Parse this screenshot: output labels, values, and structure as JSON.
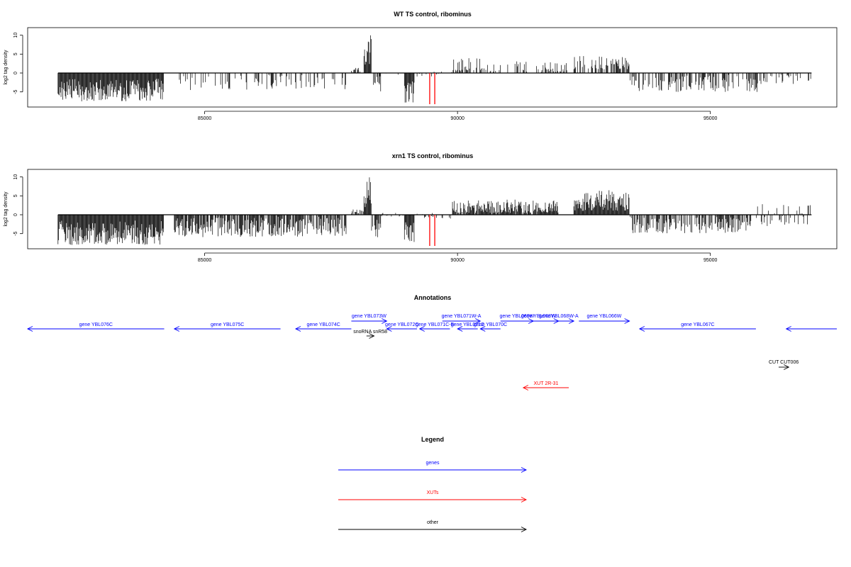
{
  "chart_data": [
    {
      "type": "bar",
      "title": "WT TS control, ribominus",
      "ylabel": "log2 tag density",
      "xlabel": "",
      "xlim": [
        81500,
        97500
      ],
      "ylim": [
        -9,
        12
      ],
      "x_ticks": [
        85000,
        90000,
        95000
      ],
      "x_tick_labels": [
        "85000",
        "90000",
        "95000"
      ],
      "y_ticks": [
        -5,
        0,
        5,
        10
      ],
      "y_tick_labels": [
        "-5",
        "0",
        "5",
        "10"
      ],
      "baseline": [
        82100,
        97000
      ],
      "highlights": [
        89450,
        89550
      ],
      "highlight_color": "#ff0000",
      "regions": [
        {
          "start": 82100,
          "end": 84200,
          "min": -7.5,
          "max": -1.5,
          "density": 1
        },
        {
          "start": 84500,
          "end": 87800,
          "min": -4.5,
          "max": -0.3,
          "density": 0.25
        },
        {
          "start": 87900,
          "end": 88100,
          "min": 0.1,
          "max": 1.5,
          "density": 0.6
        },
        {
          "start": 88150,
          "end": 88300,
          "min": 2,
          "max": 10.8,
          "density": 1
        },
        {
          "start": 88300,
          "end": 88500,
          "min": -5,
          "max": -0.5,
          "density": 0.6
        },
        {
          "start": 88500,
          "end": 88950,
          "min": -0.5,
          "max": 0.5,
          "density": 0.2
        },
        {
          "start": 88950,
          "end": 89150,
          "min": -8,
          "max": -2,
          "density": 1
        },
        {
          "start": 89200,
          "end": 89900,
          "min": -1,
          "max": 0.5,
          "density": 0.15
        },
        {
          "start": 89900,
          "end": 90500,
          "min": 0.5,
          "max": 4,
          "density": 0.5
        },
        {
          "start": 90500,
          "end": 91200,
          "min": 0.3,
          "max": 3.5,
          "density": 0.3
        },
        {
          "start": 91200,
          "end": 92200,
          "min": 0.3,
          "max": 3,
          "density": 0.35
        },
        {
          "start": 92300,
          "end": 93400,
          "min": 1,
          "max": 4.5,
          "density": 0.6
        },
        {
          "start": 93400,
          "end": 96000,
          "min": -5,
          "max": -0.5,
          "density": 0.5
        },
        {
          "start": 96000,
          "end": 97000,
          "min": -3,
          "max": -0.3,
          "density": 0.3
        }
      ]
    },
    {
      "type": "bar",
      "title": "xrn1 TS control, ribominus",
      "ylabel": "log2 tag density",
      "xlabel": "",
      "xlim": [
        81500,
        97500
      ],
      "ylim": [
        -9,
        12
      ],
      "x_ticks": [
        85000,
        90000,
        95000
      ],
      "x_tick_labels": [
        "85000",
        "90000",
        "95000"
      ],
      "y_ticks": [
        -5,
        0,
        5,
        10
      ],
      "y_tick_labels": [
        "-5",
        "0",
        "5",
        "10"
      ],
      "baseline": [
        82100,
        97000
      ],
      "highlights": [
        89450,
        89550
      ],
      "highlight_color": "#ff0000",
      "regions": [
        {
          "start": 82100,
          "end": 84200,
          "min": -8,
          "max": -1.5,
          "density": 1
        },
        {
          "start": 84400,
          "end": 87800,
          "min": -6,
          "max": -0.5,
          "density": 0.8
        },
        {
          "start": 87900,
          "end": 88150,
          "min": 0.2,
          "max": 1.5,
          "density": 0.6
        },
        {
          "start": 88150,
          "end": 88300,
          "min": 2,
          "max": 10.2,
          "density": 1
        },
        {
          "start": 88300,
          "end": 88500,
          "min": -7,
          "max": -1,
          "density": 0.7
        },
        {
          "start": 88500,
          "end": 88950,
          "min": -0.5,
          "max": 0.5,
          "density": 0.25
        },
        {
          "start": 88950,
          "end": 89150,
          "min": -8,
          "max": -2,
          "density": 1
        },
        {
          "start": 89200,
          "end": 89900,
          "min": -1,
          "max": 0.5,
          "density": 0.15
        },
        {
          "start": 89900,
          "end": 92000,
          "min": 0.5,
          "max": 4,
          "density": 0.9
        },
        {
          "start": 92300,
          "end": 93400,
          "min": 1,
          "max": 6.5,
          "density": 1
        },
        {
          "start": 93400,
          "end": 95800,
          "min": -5,
          "max": -0.5,
          "density": 0.6
        },
        {
          "start": 95800,
          "end": 97000,
          "min": -3,
          "max": 3,
          "density": 0.4
        }
      ]
    }
  ],
  "annotations": {
    "title": "Annotations",
    "xlim": [
      81500,
      97500
    ],
    "features": [
      {
        "label": "gene YBL076C",
        "start": 81500,
        "end": 84200,
        "strand": "-",
        "row": 1,
        "color": "#0000ff"
      },
      {
        "label": "gene YBL075C",
        "start": 84400,
        "end": 86500,
        "strand": "-",
        "row": 1,
        "color": "#0000ff"
      },
      {
        "label": "gene YBL074C",
        "start": 86800,
        "end": 87900,
        "strand": "-",
        "row": 1,
        "color": "#0000ff"
      },
      {
        "label": "gene YBL073W",
        "start": 87900,
        "end": 88600,
        "strand": "+",
        "row": 0,
        "color": "#0000ff"
      },
      {
        "label": "snoRNA snR58",
        "start": 88200,
        "end": 88350,
        "strand": "+",
        "row": 2,
        "color": "#000000"
      },
      {
        "label": "gene YBL072C",
        "start": 88600,
        "end": 89200,
        "strand": "-",
        "row": 1,
        "color": "#0000ff"
      },
      {
        "label": "gene YBL071C-B",
        "start": 89250,
        "end": 89850,
        "strand": "-",
        "row": 1,
        "color": "#0000ff"
      },
      {
        "label": "gene YBL071W-A",
        "start": 89700,
        "end": 90450,
        "strand": "+",
        "row": 0,
        "color": "#0000ff"
      },
      {
        "label": "gene YBL071C",
        "start": 90000,
        "end": 90400,
        "strand": "-",
        "row": 1,
        "color": "#0000ff"
      },
      {
        "label": "gene YBL070C",
        "start": 90450,
        "end": 90850,
        "strand": "-",
        "row": 1,
        "color": "#0000ff"
      },
      {
        "label": "gene YBL069W",
        "start": 90850,
        "end": 91500,
        "strand": "+",
        "row": 0,
        "color": "#0000ff"
      },
      {
        "label": "gene YBL068W",
        "start": 91200,
        "end": 92000,
        "strand": "+",
        "row": 0,
        "color": "#0000ff"
      },
      {
        "label": "gene YBL068W-A",
        "start": 91700,
        "end": 92300,
        "strand": "+",
        "row": 0,
        "color": "#0000ff"
      },
      {
        "label": "gene YBL066W",
        "start": 92400,
        "end": 93400,
        "strand": "+",
        "row": 0,
        "color": "#0000ff"
      },
      {
        "label": "gene YBL067C",
        "start": 93600,
        "end": 95900,
        "strand": "-",
        "row": 1,
        "color": "#0000ff"
      },
      {
        "label": "",
        "start": 96500,
        "end": 97500,
        "strand": "-",
        "row": 1,
        "color": "#0000ff"
      },
      {
        "label": "CUT CUT006",
        "start": 96350,
        "end": 96550,
        "strand": "+",
        "row": 3,
        "color": "#000000"
      },
      {
        "label": "XUT 2R-31",
        "start": 91300,
        "end": 92200,
        "strand": "-",
        "row": 4,
        "color": "#ff0000"
      }
    ]
  },
  "legend": {
    "title": "Legend",
    "items": [
      {
        "label": "genes",
        "color": "#0000ff"
      },
      {
        "label": "XUTs",
        "color": "#ff0000"
      },
      {
        "label": "other",
        "color": "#000000"
      }
    ]
  }
}
